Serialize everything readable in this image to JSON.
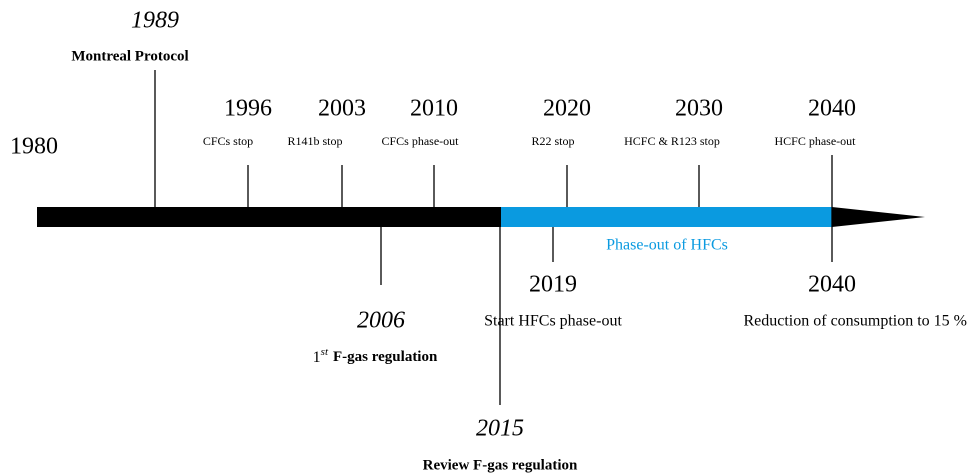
{
  "start_year": "1980",
  "above": [
    {
      "year": "1989",
      "label": "Montreal Protocol"
    },
    {
      "year": "1996",
      "label": "CFCs stop"
    },
    {
      "year": "2003",
      "label": "R141b stop"
    },
    {
      "year": "2010",
      "label": "CFCs phase-out"
    },
    {
      "year": "2020",
      "label": "R22 stop"
    },
    {
      "year": "2030",
      "label": "HCFC & R123 stop"
    },
    {
      "year": "2040",
      "label": "HCFC phase-out"
    }
  ],
  "below": [
    {
      "year": "2006",
      "label_ordinal": "1",
      "label_suffix": "st",
      "label": "F-gas regulation"
    },
    {
      "year": "2019",
      "label": "Start HFCs phase-out"
    },
    {
      "year": "2015",
      "label": "Review F-gas regulation"
    },
    {
      "year": "2040",
      "label": "Reduction of consumption to 15 %"
    }
  ],
  "band_label": "Phase-out of HFCs"
}
